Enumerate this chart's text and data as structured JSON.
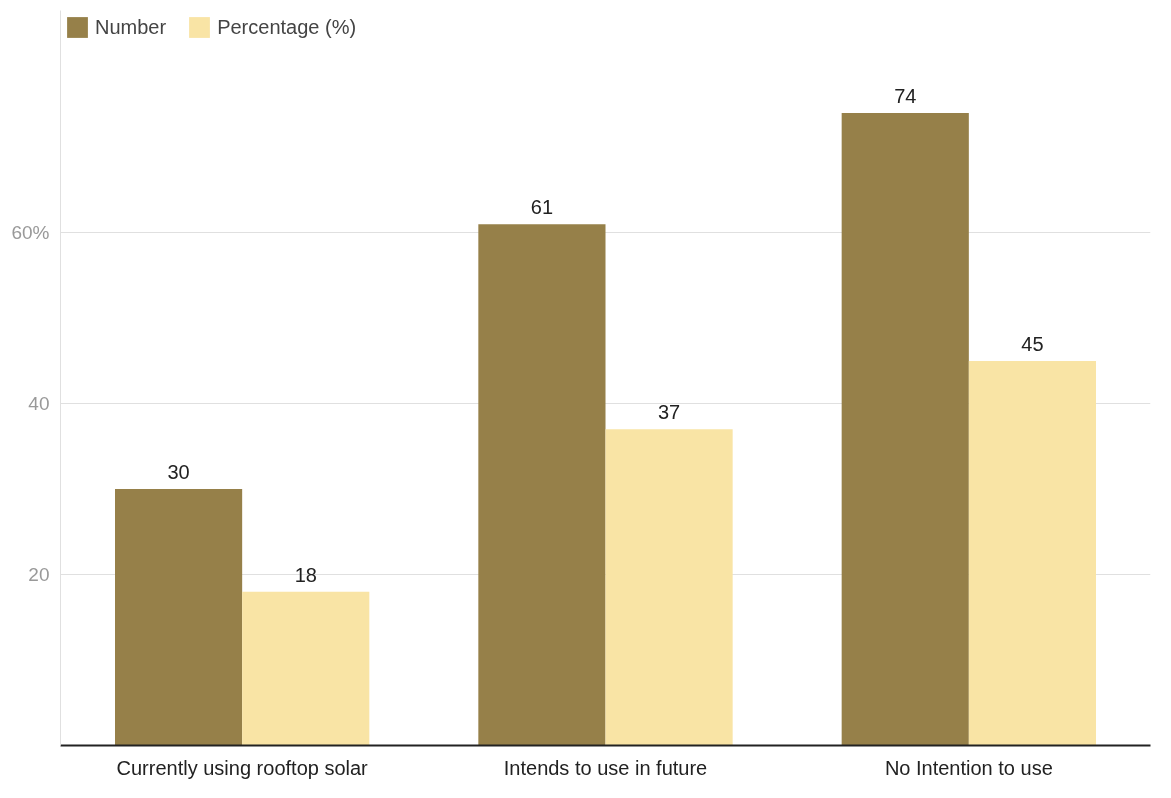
{
  "chart_data": {
    "type": "bar",
    "categories": [
      "Currently using rooftop solar",
      "Intends to use in future",
      "No Intention to use"
    ],
    "series": [
      {
        "name": "Number",
        "color": "#968049",
        "values": [
          30,
          61,
          74
        ]
      },
      {
        "name": "Percentage (%)",
        "color": "#f9e4a5",
        "values": [
          18,
          37,
          45
        ]
      }
    ],
    "ylim": [
      0,
      86
    ],
    "yticks": [
      20,
      40,
      {
        "value": 60,
        "label": "60%"
      }
    ],
    "grid": "y",
    "legend": "top left",
    "data_labels": true
  }
}
